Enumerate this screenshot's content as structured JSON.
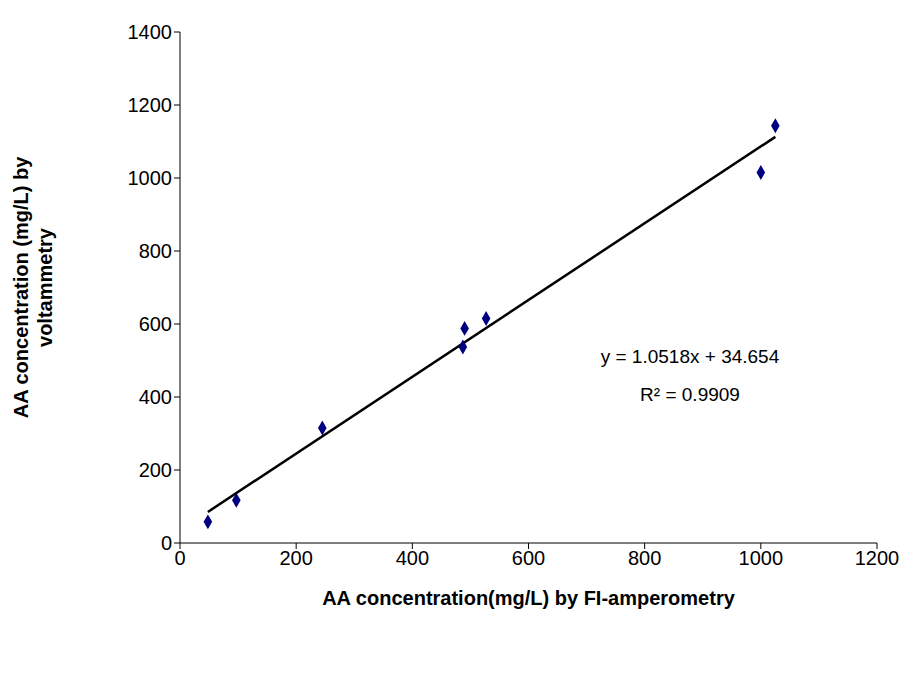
{
  "chart_data": {
    "type": "scatter",
    "x_label": "AA concentration(mg/L) by FI-amperometry",
    "y_label": "AA concentration (mg/L) by voltammetry",
    "x": [
      48,
      97,
      245,
      487,
      490,
      527,
      1000,
      1025
    ],
    "values": [
      58,
      117,
      315,
      537,
      588,
      615,
      1015,
      1143
    ],
    "color": "#000080",
    "marker": "diamond",
    "xlim": [
      0,
      1200
    ],
    "xticks": [
      0,
      200,
      400,
      600,
      800,
      1000,
      1200
    ],
    "ylim": [
      0,
      1400
    ],
    "yticks": [
      0,
      200,
      400,
      600,
      800,
      1000,
      1200,
      1400
    ],
    "grid": false,
    "trendline": {
      "slope": 1.0518,
      "intercept": 34.654,
      "color": "#000000"
    },
    "annotations": [
      "y = 1.0518x + 34.654",
      "R² = 0.9909"
    ]
  }
}
